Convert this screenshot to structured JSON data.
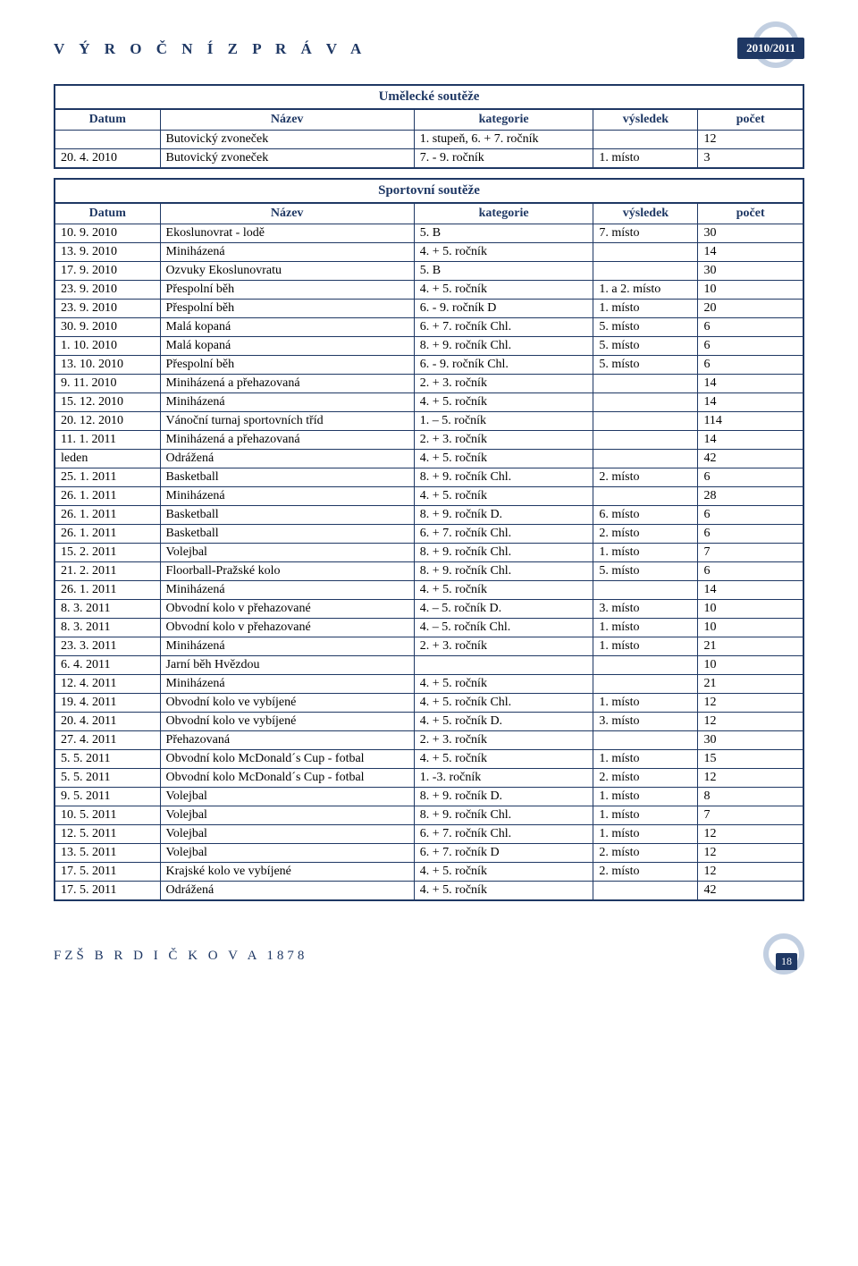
{
  "header": {
    "letters": "V Ý R O Č N Í   Z P R Á V A",
    "year": "2010/2011"
  },
  "footer": {
    "letters": "FZŠ  B R D I Č K O V A  1878",
    "page": "18"
  },
  "table1": {
    "title": "Umělecké soutěže",
    "columns": [
      "Datum",
      "Název",
      "kategorie",
      "výsledek",
      "počet"
    ],
    "rows": [
      [
        "",
        "Butovický zvoneček",
        "1. stupeň, 6. + 7. ročník",
        "",
        "12"
      ],
      [
        "20. 4. 2010",
        "Butovický zvoneček",
        "7. - 9. ročník",
        "1. místo",
        "3"
      ]
    ]
  },
  "table2": {
    "title": "Sportovní soutěže",
    "columns": [
      "Datum",
      "Název",
      "kategorie",
      "výsledek",
      "počet"
    ],
    "rows": [
      [
        "10. 9. 2010",
        "Ekoslunovrat - lodě",
        "5. B",
        "7. místo",
        "30"
      ],
      [
        "13. 9. 2010",
        "Miniházená",
        "4. + 5. ročník",
        "",
        "14"
      ],
      [
        "17. 9. 2010",
        "Ozvuky Ekoslunovratu",
        "5. B",
        "",
        "30"
      ],
      [
        "23. 9. 2010",
        "Přespolní běh",
        "4. + 5. ročník",
        "1. a 2. místo",
        "10"
      ],
      [
        "23. 9. 2010",
        "Přespolní běh",
        "6. - 9. ročník D",
        "1. místo",
        "20"
      ],
      [
        "30. 9. 2010",
        "Malá kopaná",
        "6. + 7. ročník Chl.",
        "5. místo",
        "6"
      ],
      [
        "1. 10. 2010",
        "Malá kopaná",
        "8. + 9. ročník Chl.",
        "5. místo",
        "6"
      ],
      [
        "13. 10. 2010",
        "Přespolní běh",
        "6. - 9. ročník Chl.",
        "5. místo",
        "6"
      ],
      [
        "9. 11. 2010",
        "Miniházená a přehazovaná",
        "2. + 3. ročník",
        "",
        "14"
      ],
      [
        "15. 12. 2010",
        "Miniházená",
        "4. + 5. ročník",
        "",
        "14"
      ],
      [
        "20. 12. 2010",
        "Vánoční turnaj sportovních tříd",
        "1. – 5. ročník",
        "",
        "114"
      ],
      [
        "11. 1. 2011",
        "Miniházená a přehazovaná",
        "2. + 3. ročník",
        "",
        "14"
      ],
      [
        "leden",
        "Odrážená",
        "4. + 5. ročník",
        "",
        "42"
      ],
      [
        "25. 1. 2011",
        "Basketball",
        "8. + 9. ročník Chl.",
        "2. místo",
        "6"
      ],
      [
        "26. 1. 2011",
        "Miniházená",
        "4. + 5. ročník",
        "",
        "28"
      ],
      [
        "26. 1. 2011",
        "Basketball",
        "8. + 9. ročník D.",
        "6. místo",
        "6"
      ],
      [
        "26. 1. 2011",
        "Basketball",
        "6. + 7. ročník Chl.",
        "2. místo",
        "6"
      ],
      [
        "15. 2. 2011",
        "Volejbal",
        "8. + 9. ročník Chl.",
        "1. místo",
        "7"
      ],
      [
        "21. 2. 2011",
        "Floorball-Pražské kolo",
        "8. + 9. ročník Chl.",
        "5. místo",
        "6"
      ],
      [
        "26. 1. 2011",
        "Miniházená",
        "4. + 5. ročník",
        "",
        "14"
      ],
      [
        "8. 3. 2011",
        "Obvodní kolo v přehazované",
        "4. – 5. ročník D.",
        "3. místo",
        "10"
      ],
      [
        "8. 3. 2011",
        "Obvodní kolo v přehazované",
        "4. – 5. ročník Chl.",
        "1. místo",
        "10"
      ],
      [
        "23. 3. 2011",
        "Miniházená",
        "2. + 3. ročník",
        "1. místo",
        "21"
      ],
      [
        "6. 4. 2011",
        "Jarní běh Hvězdou",
        "",
        "",
        "10"
      ],
      [
        "12. 4. 2011",
        "Miniházená",
        "4. + 5. ročník",
        "",
        "21"
      ],
      [
        "19. 4. 2011",
        "Obvodní kolo ve vybíjené",
        "4. + 5. ročník  Chl.",
        "1. místo",
        "12"
      ],
      [
        "20. 4. 2011",
        "Obvodní kolo ve vybíjené",
        "4. + 5. ročník D.",
        "3. místo",
        "12"
      ],
      [
        "27. 4. 2011",
        "Přehazovaná",
        "2. + 3. ročník",
        "",
        "30"
      ],
      [
        "5. 5. 2011",
        "Obvodní kolo McDonald´s Cup - fotbal",
        "4. + 5. ročník",
        "1. místo",
        "15"
      ],
      [
        "5. 5. 2011",
        "Obvodní kolo McDonald´s Cup - fotbal",
        "1. -3. ročník",
        "2. místo",
        "12"
      ],
      [
        "9. 5. 2011",
        "Volejbal",
        "8. + 9. ročník D.",
        "1. místo",
        "8"
      ],
      [
        "10. 5. 2011",
        "Volejbal",
        "8. + 9. ročník Chl.",
        "1. místo",
        "7"
      ],
      [
        "12. 5. 2011",
        "Volejbal",
        "6. + 7. ročník Chl.",
        "1. místo",
        "12"
      ],
      [
        "13. 5. 2011",
        "Volejbal",
        "6. + 7. ročník D",
        "2. místo",
        "12"
      ],
      [
        "17. 5. 2011",
        "Krajské kolo ve vybíjené",
        "4. + 5. ročník",
        "2. místo",
        "12"
      ],
      [
        "17. 5. 2011",
        "Odrážená",
        "4. + 5. ročník",
        "",
        "42"
      ]
    ]
  }
}
